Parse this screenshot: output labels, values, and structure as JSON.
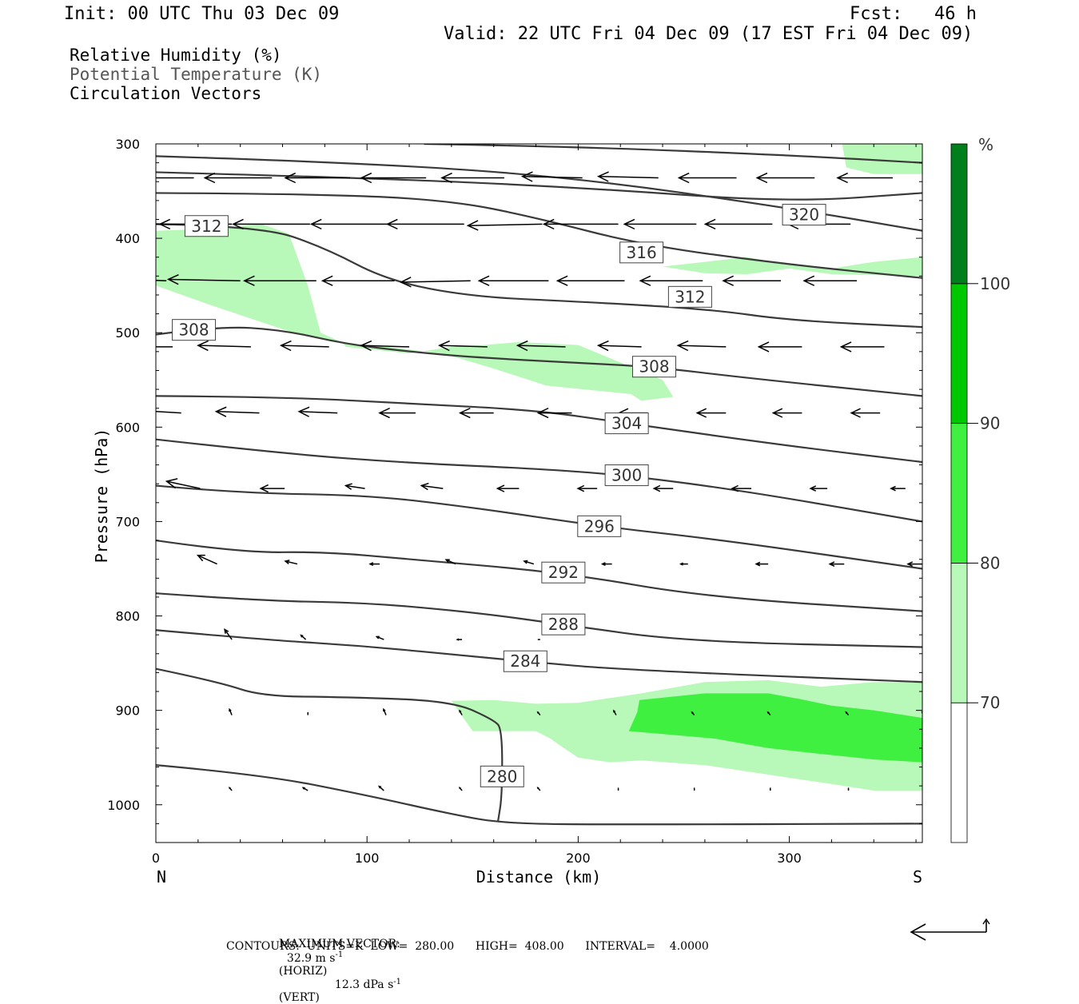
{
  "header": {
    "init": "Init: 00 UTC Thu 03 Dec 09",
    "fcst": "Fcst:   46 h",
    "valid": "Valid: 22 UTC Fri 04 Dec 09 (17 EST Fri 04 Dec 09)"
  },
  "fields": [
    "Relative Humidity (%)",
    "Potential Temperature (K)",
    "Circulation Vectors"
  ],
  "footer": {
    "maxvec_label": "MAXIMUM VECTOR:",
    "maxvec_horiz": "32.9 m s",
    "maxvec_horiz_exp": "-1",
    "maxvec_horiz_tag": "(HORIZ)",
    "maxvec_vert": "12.3 dPa s",
    "maxvec_vert_exp": "-1",
    "maxvec_vert_tag": "(VERT)",
    "contours": "CONTOURS:  UNITS=K  LOW=  280.00      HIGH=  408.00      INTERVAL=    4.0000"
  },
  "colorbar": {
    "unit": "%",
    "levels": [
      70,
      80,
      90,
      100
    ],
    "colors": [
      "#ffffff",
      "#b8f8b8",
      "#40f040",
      "#00c800",
      "#00801c"
    ]
  },
  "chart_data": {
    "type": "cross-section",
    "xlabel": "Distance (km)",
    "ylabel": "Pressure (hPa)",
    "x_end_labels": {
      "left": "N",
      "right": "S"
    },
    "xlim": [
      0,
      363
    ],
    "ylim": [
      1040,
      300
    ],
    "xticks": [
      0,
      100,
      200,
      300
    ],
    "yticks": [
      300,
      400,
      500,
      600,
      700,
      800,
      900,
      1000
    ],
    "theta_contours": [
      {
        "label": "320",
        "lab": [
          307,
          375
        ],
        "pts": [
          [
            0,
            313
          ],
          [
            100,
            320
          ],
          [
            200,
            336
          ],
          [
            300,
            368
          ],
          [
            363,
            392
          ]
        ]
      },
      {
        "label": "",
        "pts": [
          [
            0,
            330
          ],
          [
            100,
            336
          ],
          [
            200,
            346
          ],
          [
            300,
            362
          ],
          [
            363,
            352
          ]
        ]
      },
      {
        "label": "",
        "pts": [
          [
            127,
            300
          ],
          [
            200,
            303
          ],
          [
            300,
            312
          ],
          [
            363,
            320
          ]
        ]
      },
      {
        "label": "316",
        "lab": [
          230,
          415
        ],
        "pts": [
          [
            0,
            352
          ],
          [
            80,
            353
          ],
          [
            140,
            360
          ],
          [
            180,
            378
          ],
          [
            230,
            407
          ],
          [
            300,
            428
          ],
          [
            363,
            442
          ]
        ]
      },
      {
        "label": "312",
        "lab": [
          24,
          387
        ],
        "pts": [
          [
            0,
            385
          ],
          [
            50,
            387
          ],
          [
            80,
            410
          ],
          [
            110,
            445
          ],
          [
            150,
            462
          ],
          [
            200,
            467
          ],
          [
            262,
            475
          ],
          [
            300,
            487
          ],
          [
            363,
            494
          ]
        ]
      },
      {
        "label": "312",
        "lab": [
          253,
          462
        ],
        "pts": []
      },
      {
        "label": "308",
        "lab": [
          18,
          497
        ],
        "pts": [
          [
            0,
            502
          ],
          [
            30,
            493
          ],
          [
            60,
            497
          ],
          [
            90,
            512
          ],
          [
            120,
            520
          ],
          [
            150,
            526
          ],
          [
            200,
            532
          ],
          [
            235,
            536
          ],
          [
            280,
            548
          ],
          [
            363,
            567
          ]
        ]
      },
      {
        "label": "308",
        "lab": [
          236,
          536
        ],
        "pts": []
      },
      {
        "label": "304",
        "lab": [
          223,
          596
        ],
        "pts": [
          [
            0,
            567
          ],
          [
            60,
            568
          ],
          [
            120,
            575
          ],
          [
            180,
            582
          ],
          [
            223,
            596
          ],
          [
            300,
            620
          ],
          [
            363,
            637
          ]
        ]
      },
      {
        "label": "300",
        "lab": [
          223,
          651
        ],
        "pts": [
          [
            0,
            613
          ],
          [
            60,
            628
          ],
          [
            120,
            638
          ],
          [
            180,
            644
          ],
          [
            223,
            651
          ],
          [
            280,
            668
          ],
          [
            363,
            700
          ]
        ]
      },
      {
        "label": "296",
        "lab": [
          210,
          705
        ],
        "pts": [
          [
            0,
            662
          ],
          [
            40,
            670
          ],
          [
            100,
            672
          ],
          [
            150,
            685
          ],
          [
            210,
            705
          ],
          [
            270,
            720
          ],
          [
            363,
            750
          ]
        ]
      },
      {
        "label": "292",
        "lab": [
          193,
          754
        ],
        "pts": [
          [
            0,
            720
          ],
          [
            40,
            733
          ],
          [
            80,
            732
          ],
          [
            120,
            740
          ],
          [
            193,
            754
          ],
          [
            260,
            780
          ],
          [
            363,
            795
          ]
        ]
      },
      {
        "label": "288",
        "lab": [
          193,
          809
        ],
        "pts": [
          [
            0,
            776
          ],
          [
            50,
            784
          ],
          [
            100,
            786
          ],
          [
            150,
            796
          ],
          [
            193,
            809
          ],
          [
            250,
            827
          ],
          [
            363,
            833
          ]
        ]
      },
      {
        "label": "284",
        "lab": [
          175,
          848
        ],
        "pts": [
          [
            0,
            815
          ],
          [
            50,
            825
          ],
          [
            100,
            832
          ],
          [
            150,
            843
          ],
          [
            175,
            848
          ],
          [
            220,
            857
          ],
          [
            363,
            870
          ]
        ]
      },
      {
        "label": "280",
        "lab": [
          164,
          970
        ],
        "pts": [
          [
            0,
            856
          ],
          [
            30,
            870
          ],
          [
            50,
            885
          ],
          [
            90,
            886
          ],
          [
            140,
            890
          ],
          [
            160,
            910
          ],
          [
            164,
            920
          ],
          [
            164,
            990
          ],
          [
            162,
            1018
          ]
        ]
      },
      {
        "label": "",
        "pts": [
          [
            0,
            958
          ],
          [
            50,
            968
          ],
          [
            100,
            990
          ],
          [
            140,
            1010
          ],
          [
            165,
            1020
          ],
          [
            220,
            1021
          ],
          [
            363,
            1020
          ]
        ]
      }
    ],
    "rh_shading": [
      {
        "level": "70-80",
        "pts": [
          [
            0,
            392
          ],
          [
            25,
            390
          ],
          [
            50,
            385
          ],
          [
            63,
            395
          ],
          [
            72,
            450
          ],
          [
            78,
            500
          ],
          [
            88,
            510
          ],
          [
            90,
            515
          ],
          [
            120,
            522
          ],
          [
            140,
            515
          ],
          [
            155,
            513
          ],
          [
            172,
            510
          ],
          [
            200,
            513
          ],
          [
            240,
            550
          ],
          [
            245,
            568
          ],
          [
            230,
            572
          ],
          [
            225,
            565
          ],
          [
            185,
            556
          ],
          [
            160,
            538
          ],
          [
            145,
            528
          ],
          [
            135,
            522
          ],
          [
            110,
            515
          ],
          [
            90,
            512
          ],
          [
            65,
            500
          ],
          [
            45,
            485
          ],
          [
            25,
            470
          ],
          [
            0,
            450
          ]
        ]
      },
      {
        "level": "70-80",
        "pts": [
          [
            325,
            300
          ],
          [
            363,
            300
          ],
          [
            363,
            332
          ],
          [
            340,
            332
          ],
          [
            327,
            325
          ]
        ]
      },
      {
        "level": "70-80",
        "pts": [
          [
            240,
            430
          ],
          [
            260,
            425
          ],
          [
            280,
            420
          ],
          [
            300,
            428
          ],
          [
            320,
            432
          ],
          [
            340,
            425
          ],
          [
            363,
            420
          ],
          [
            363,
            440
          ],
          [
            320,
            438
          ],
          [
            300,
            432
          ],
          [
            280,
            438
          ],
          [
            260,
            437
          ]
        ]
      },
      {
        "level": "70-80",
        "pts": [
          [
            140,
            890
          ],
          [
            160,
            889
          ],
          [
            180,
            893
          ],
          [
            200,
            892
          ],
          [
            230,
            882
          ],
          [
            260,
            870
          ],
          [
            290,
            868
          ],
          [
            315,
            875
          ],
          [
            340,
            870
          ],
          [
            363,
            870
          ],
          [
            363,
            985
          ],
          [
            340,
            985
          ],
          [
            320,
            978
          ],
          [
            290,
            968
          ],
          [
            260,
            958
          ],
          [
            230,
            953
          ],
          [
            215,
            955
          ],
          [
            200,
            950
          ],
          [
            190,
            935
          ],
          [
            187,
            930
          ],
          [
            180,
            922
          ],
          [
            150,
            922
          ]
        ]
      },
      {
        "level": "80-90",
        "pts": [
          [
            229,
            889
          ],
          [
            260,
            882
          ],
          [
            290,
            882
          ],
          [
            305,
            888
          ],
          [
            320,
            895
          ],
          [
            340,
            900
          ],
          [
            363,
            908
          ],
          [
            363,
            955
          ],
          [
            340,
            952
          ],
          [
            310,
            945
          ],
          [
            290,
            940
          ],
          [
            265,
            930
          ],
          [
            240,
            925
          ],
          [
            224,
            922
          ],
          [
            228,
            902
          ]
        ]
      }
    ],
    "wind_vectors_note": "circulation vectors, arrows point mostly N (leftward) aloft",
    "vector_rows": [
      {
        "p": 336,
        "xs": [
          18,
          55,
          92,
          128,
          165,
          202,
          238,
          275,
          312,
          349
        ],
        "u": [
          -28,
          -28,
          -27,
          -27,
          -26,
          -25,
          -25,
          -24,
          -24,
          -23
        ],
        "w": [
          0,
          0,
          0,
          0,
          0,
          1,
          1,
          0,
          0,
          0
        ]
      },
      {
        "p": 385,
        "xs": [
          5,
          36,
          73,
          110,
          146,
          183,
          219,
          256,
          292,
          329
        ],
        "u": [
          -32,
          -30,
          -32,
          -32,
          -32,
          -31,
          -31,
          -30,
          -28,
          -26
        ],
        "w": [
          0,
          0,
          0,
          0,
          0,
          -1,
          0,
          0,
          0,
          0
        ]
      },
      {
        "p": 445,
        "xs": [
          5,
          40,
          76,
          113,
          149,
          186,
          222,
          259,
          296,
          332
        ],
        "u": [
          -30,
          -30,
          -30,
          -30,
          -29,
          -29,
          -28,
          -26,
          -24,
          -22
        ],
        "w": [
          2,
          1,
          0,
          0,
          -1,
          0,
          0,
          0,
          0,
          0
        ]
      },
      {
        "p": 515,
        "xs": [
          8,
          45,
          82,
          120,
          157,
          194,
          230,
          270,
          306,
          345
        ],
        "u": [
          -20,
          -22,
          -20,
          -20,
          -20,
          -20,
          -18,
          -20,
          -18,
          -18
        ],
        "w": [
          0,
          1,
          1,
          1,
          1,
          1,
          1,
          1,
          0,
          0
        ]
      },
      {
        "p": 585,
        "xs": [
          12,
          49,
          86,
          123,
          160,
          197,
          233,
          270,
          306,
          343
        ],
        "u": [
          -20,
          -18,
          -16,
          -15,
          -14,
          -14,
          -12,
          -12,
          -12,
          -12
        ],
        "w": [
          2,
          1,
          1,
          0,
          0,
          0,
          0,
          0,
          0,
          0
        ]
      },
      {
        "p": 665,
        "xs": [
          21,
          61,
          99,
          136,
          172,
          209,
          245,
          282,
          318,
          355
        ],
        "u": [
          -14,
          -10,
          -8,
          -9,
          -9,
          -8,
          -8,
          -8,
          -7,
          -6
        ],
        "w": [
          5,
          0,
          2,
          2,
          0,
          0,
          0,
          0,
          0,
          0
        ]
      },
      {
        "p": 745,
        "xs": [
          29,
          67,
          106,
          142,
          179,
          216,
          252,
          290,
          326,
          363
        ],
        "u": [
          -8,
          -5,
          -4,
          -4,
          -4,
          -4,
          -3,
          -5,
          -6,
          -6
        ],
        "w": [
          6,
          2,
          0,
          3,
          2,
          0,
          0,
          0,
          0,
          0
        ]
      },
      {
        "p": 825,
        "xs": [
          36,
          71,
          108,
          145,
          182,
          219,
          255,
          292,
          328
        ],
        "u": [
          -3,
          -2,
          -3,
          -2,
          -1,
          0,
          0,
          0,
          0
        ],
        "w": [
          7,
          3,
          2,
          0,
          0,
          0,
          0,
          0,
          0
        ]
      },
      {
        "p": 905,
        "xs": [
          36,
          72,
          109,
          145,
          182,
          218,
          255,
          291,
          328,
          364
        ],
        "u": [
          -1,
          0,
          -1,
          -1,
          -1,
          -1,
          -1,
          -1,
          -1,
          -1
        ],
        "w": [
          4,
          2,
          4,
          3,
          2,
          3,
          2,
          2,
          2,
          2
        ]
      },
      {
        "p": 985,
        "xs": [
          36,
          72,
          108,
          145,
          182,
          219,
          255,
          291,
          328
        ],
        "u": [
          -1,
          -2,
          -2,
          -1,
          -1,
          0,
          0,
          0,
          0
        ],
        "w": [
          2,
          2,
          3,
          2,
          2,
          2,
          2,
          2,
          2
        ]
      }
    ]
  }
}
